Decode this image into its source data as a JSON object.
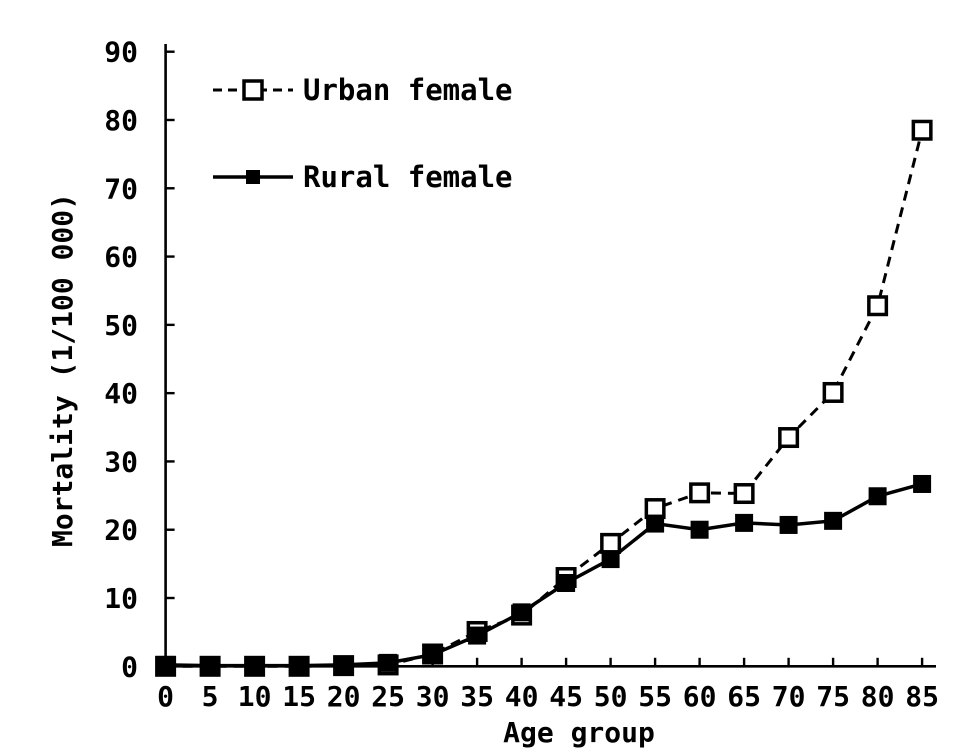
{
  "figure": {
    "background": "#ffffff",
    "ink_color": "#000000"
  },
  "chart_data": {
    "type": "line",
    "title": "",
    "xlabel": "Age group",
    "ylabel": "Mortality (1/100 000)",
    "categories": [
      0,
      5,
      10,
      15,
      20,
      25,
      30,
      35,
      40,
      45,
      50,
      55,
      60,
      65,
      70,
      75,
      80,
      85
    ],
    "x_tick_labels": [
      "0",
      "5",
      "10",
      "15",
      "20",
      "25",
      "30",
      "35",
      "40",
      "45",
      "50",
      "55",
      "60",
      "65",
      "70",
      "75",
      "80",
      "85"
    ],
    "y_ticks": [
      0,
      10,
      20,
      30,
      40,
      50,
      60,
      70,
      80,
      90
    ],
    "y_tick_labels": [
      "0",
      "10",
      "20",
      "30",
      "40",
      "50",
      "60",
      "70",
      "80",
      "90"
    ],
    "ylim": [
      0,
      90
    ],
    "grid": false,
    "legend_position": "upper-left-inside",
    "series": [
      {
        "name": "Urban female",
        "marker": "open-square-icon",
        "line_style": "dashed",
        "color": "#000000",
        "values": [
          0,
          0,
          0,
          0,
          0.1,
          0.2,
          1.8,
          5.1,
          7.5,
          13.0,
          18.0,
          23.1,
          25.4,
          25.3,
          33.5,
          40.1,
          52.8,
          78.5
        ]
      },
      {
        "name": "Rural female",
        "marker": "filled-square-icon",
        "line_style": "solid",
        "color": "#000000",
        "values": [
          0.2,
          0.1,
          0.1,
          0.1,
          0.2,
          0.5,
          1.7,
          4.5,
          7.9,
          12.2,
          15.7,
          20.9,
          20.0,
          21.0,
          20.7,
          21.3,
          24.9,
          26.7
        ]
      }
    ]
  }
}
